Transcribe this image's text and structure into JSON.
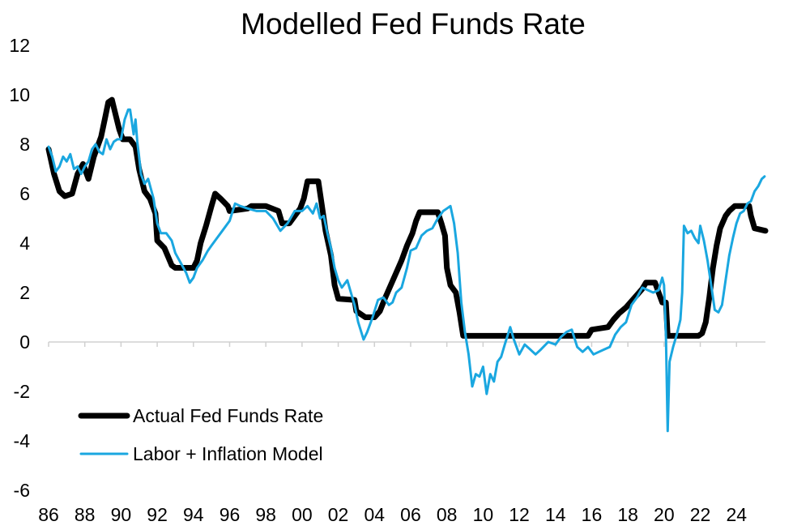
{
  "chart_data": {
    "type": "line",
    "title": "Modelled Fed Funds Rate",
    "xlabel": "",
    "ylabel": "",
    "xlim": [
      1986,
      2025.6
    ],
    "ylim": [
      -6,
      12
    ],
    "grid": false,
    "legend_position": "bottom-left",
    "y_ticks": [
      {
        "value": 12,
        "label": "12"
      },
      {
        "value": 10,
        "label": "10"
      },
      {
        "value": 8,
        "label": "8"
      },
      {
        "value": 6,
        "label": "6"
      },
      {
        "value": 4,
        "label": "4"
      },
      {
        "value": 2,
        "label": "2"
      },
      {
        "value": 0,
        "label": "0"
      },
      {
        "value": -2,
        "label": "-2"
      },
      {
        "value": -4,
        "label": "-4"
      },
      {
        "value": -6,
        "label": "-6"
      }
    ],
    "x_ticks": [
      {
        "value": 1986,
        "label": "86"
      },
      {
        "value": 1988,
        "label": "88"
      },
      {
        "value": 1990,
        "label": "90"
      },
      {
        "value": 1992,
        "label": "92"
      },
      {
        "value": 1994,
        "label": "94"
      },
      {
        "value": 1996,
        "label": "96"
      },
      {
        "value": 1998,
        "label": "98"
      },
      {
        "value": 2000,
        "label": "00"
      },
      {
        "value": 2002,
        "label": "02"
      },
      {
        "value": 2004,
        "label": "04"
      },
      {
        "value": 2006,
        "label": "06"
      },
      {
        "value": 2008,
        "label": "08"
      },
      {
        "value": 2010,
        "label": "10"
      },
      {
        "value": 2012,
        "label": "12"
      },
      {
        "value": 2014,
        "label": "14"
      },
      {
        "value": 2016,
        "label": "16"
      },
      {
        "value": 2018,
        "label": "18"
      },
      {
        "value": 2020,
        "label": "20"
      },
      {
        "value": 2022,
        "label": "22"
      },
      {
        "value": 2024,
        "label": "24"
      }
    ],
    "series": [
      {
        "name": "Actual Fed Funds Rate",
        "color": "#000000",
        "points": [
          [
            1986.0,
            7.8
          ],
          [
            1986.3,
            6.8
          ],
          [
            1986.6,
            6.1
          ],
          [
            1986.9,
            5.9
          ],
          [
            1987.3,
            6.0
          ],
          [
            1987.6,
            6.8
          ],
          [
            1987.9,
            7.2
          ],
          [
            1988.2,
            6.6
          ],
          [
            1988.5,
            7.5
          ],
          [
            1988.9,
            8.3
          ],
          [
            1989.1,
            9.0
          ],
          [
            1989.3,
            9.7
          ],
          [
            1989.5,
            9.8
          ],
          [
            1989.7,
            9.2
          ],
          [
            1989.9,
            8.6
          ],
          [
            1990.1,
            8.2
          ],
          [
            1990.5,
            8.2
          ],
          [
            1990.8,
            7.9
          ],
          [
            1991.0,
            7.0
          ],
          [
            1991.3,
            6.1
          ],
          [
            1991.6,
            5.8
          ],
          [
            1991.9,
            5.2
          ],
          [
            1992.0,
            4.1
          ],
          [
            1992.4,
            3.8
          ],
          [
            1992.8,
            3.1
          ],
          [
            1993.0,
            3.0
          ],
          [
            1993.5,
            3.0
          ],
          [
            1994.0,
            3.0
          ],
          [
            1994.2,
            3.3
          ],
          [
            1994.4,
            4.0
          ],
          [
            1994.7,
            4.7
          ],
          [
            1995.0,
            5.5
          ],
          [
            1995.2,
            6.0
          ],
          [
            1995.5,
            5.8
          ],
          [
            1995.9,
            5.5
          ],
          [
            1996.0,
            5.3
          ],
          [
            1997.0,
            5.4
          ],
          [
            1997.2,
            5.5
          ],
          [
            1998.0,
            5.5
          ],
          [
            1998.7,
            5.3
          ],
          [
            1998.9,
            4.8
          ],
          [
            1999.3,
            4.8
          ],
          [
            1999.6,
            5.1
          ],
          [
            1999.9,
            5.4
          ],
          [
            2000.1,
            5.8
          ],
          [
            2000.3,
            6.5
          ],
          [
            2000.9,
            6.5
          ],
          [
            2001.1,
            5.5
          ],
          [
            2001.3,
            4.5
          ],
          [
            2001.6,
            3.5
          ],
          [
            2001.8,
            2.3
          ],
          [
            2002.0,
            1.75
          ],
          [
            2002.9,
            1.7
          ],
          [
            2003.0,
            1.25
          ],
          [
            2003.5,
            1.0
          ],
          [
            2004.0,
            1.0
          ],
          [
            2004.3,
            1.25
          ],
          [
            2004.6,
            1.8
          ],
          [
            2004.9,
            2.3
          ],
          [
            2005.2,
            2.8
          ],
          [
            2005.5,
            3.3
          ],
          [
            2005.8,
            3.9
          ],
          [
            2006.1,
            4.4
          ],
          [
            2006.3,
            4.9
          ],
          [
            2006.5,
            5.25
          ],
          [
            2007.5,
            5.25
          ],
          [
            2007.7,
            4.8
          ],
          [
            2007.9,
            4.3
          ],
          [
            2008.0,
            3.0
          ],
          [
            2008.2,
            2.3
          ],
          [
            2008.5,
            2.0
          ],
          [
            2008.7,
            1.2
          ],
          [
            2008.9,
            0.25
          ],
          [
            2009.5,
            0.25
          ],
          [
            2015.8,
            0.25
          ],
          [
            2016.0,
            0.5
          ],
          [
            2016.9,
            0.6
          ],
          [
            2017.2,
            0.9
          ],
          [
            2017.5,
            1.15
          ],
          [
            2017.9,
            1.4
          ],
          [
            2018.2,
            1.65
          ],
          [
            2018.5,
            1.9
          ],
          [
            2018.8,
            2.15
          ],
          [
            2019.0,
            2.4
          ],
          [
            2019.5,
            2.4
          ],
          [
            2019.7,
            2.0
          ],
          [
            2019.9,
            1.6
          ],
          [
            2020.1,
            1.6
          ],
          [
            2020.2,
            0.25
          ],
          [
            2021.9,
            0.25
          ],
          [
            2022.1,
            0.35
          ],
          [
            2022.3,
            0.8
          ],
          [
            2022.5,
            1.8
          ],
          [
            2022.7,
            3.0
          ],
          [
            2022.9,
            3.9
          ],
          [
            2023.1,
            4.6
          ],
          [
            2023.4,
            5.1
          ],
          [
            2023.6,
            5.3
          ],
          [
            2023.9,
            5.5
          ],
          [
            2024.7,
            5.5
          ],
          [
            2024.8,
            5.1
          ],
          [
            2025.0,
            4.6
          ],
          [
            2025.6,
            4.5
          ]
        ]
      },
      {
        "name": "Labor + Inflation Model",
        "color": "#1aa7e0",
        "points": [
          [
            1986.0,
            7.9
          ],
          [
            1986.2,
            7.5
          ],
          [
            1986.4,
            6.9
          ],
          [
            1986.6,
            7.1
          ],
          [
            1986.8,
            7.5
          ],
          [
            1987.0,
            7.3
          ],
          [
            1987.2,
            7.6
          ],
          [
            1987.4,
            7.0
          ],
          [
            1987.6,
            7.1
          ],
          [
            1987.8,
            6.8
          ],
          [
            1988.0,
            7.1
          ],
          [
            1988.2,
            7.3
          ],
          [
            1988.4,
            7.8
          ],
          [
            1988.6,
            8.0
          ],
          [
            1988.8,
            7.7
          ],
          [
            1989.0,
            7.6
          ],
          [
            1989.2,
            8.2
          ],
          [
            1989.4,
            7.8
          ],
          [
            1989.6,
            8.1
          ],
          [
            1989.8,
            8.2
          ],
          [
            1990.0,
            8.2
          ],
          [
            1990.2,
            9.0
          ],
          [
            1990.4,
            9.4
          ],
          [
            1990.5,
            9.4
          ],
          [
            1990.7,
            8.4
          ],
          [
            1990.8,
            9.0
          ],
          [
            1990.9,
            8.1
          ],
          [
            1991.0,
            7.5
          ],
          [
            1991.1,
            6.8
          ],
          [
            1991.3,
            6.4
          ],
          [
            1991.5,
            6.6
          ],
          [
            1991.8,
            5.8
          ],
          [
            1992.0,
            4.8
          ],
          [
            1992.2,
            4.4
          ],
          [
            1992.5,
            4.4
          ],
          [
            1992.8,
            4.1
          ],
          [
            1993.0,
            3.6
          ],
          [
            1993.3,
            3.2
          ],
          [
            1993.6,
            2.8
          ],
          [
            1993.8,
            2.4
          ],
          [
            1994.0,
            2.6
          ],
          [
            1994.2,
            3.0
          ],
          [
            1994.5,
            3.3
          ],
          [
            1994.8,
            3.7
          ],
          [
            1995.0,
            3.9
          ],
          [
            1995.3,
            4.2
          ],
          [
            1995.6,
            4.5
          ],
          [
            1996.0,
            4.9
          ],
          [
            1996.3,
            5.6
          ],
          [
            1996.6,
            5.5
          ],
          [
            1997.0,
            5.4
          ],
          [
            1997.5,
            5.3
          ],
          [
            1998.0,
            5.3
          ],
          [
            1998.4,
            5.0
          ],
          [
            1998.8,
            4.5
          ],
          [
            1999.2,
            4.8
          ],
          [
            1999.6,
            5.3
          ],
          [
            2000.0,
            5.3
          ],
          [
            2000.3,
            5.5
          ],
          [
            2000.6,
            5.2
          ],
          [
            2000.8,
            5.6
          ],
          [
            2001.0,
            5.0
          ],
          [
            2001.2,
            5.1
          ],
          [
            2001.4,
            4.4
          ],
          [
            2001.6,
            3.8
          ],
          [
            2001.8,
            3.0
          ],
          [
            2002.0,
            2.5
          ],
          [
            2002.2,
            2.2
          ],
          [
            2002.5,
            2.5
          ],
          [
            2002.7,
            2.0
          ],
          [
            2002.9,
            1.5
          ],
          [
            2003.1,
            0.8
          ],
          [
            2003.4,
            0.1
          ],
          [
            2003.6,
            0.4
          ],
          [
            2003.9,
            1.0
          ],
          [
            2004.2,
            1.7
          ],
          [
            2004.5,
            1.8
          ],
          [
            2004.8,
            1.5
          ],
          [
            2005.0,
            1.6
          ],
          [
            2005.2,
            2.0
          ],
          [
            2005.5,
            2.2
          ],
          [
            2005.8,
            3.0
          ],
          [
            2006.0,
            3.7
          ],
          [
            2006.3,
            3.8
          ],
          [
            2006.6,
            4.3
          ],
          [
            2006.9,
            4.5
          ],
          [
            2007.2,
            4.6
          ],
          [
            2007.5,
            5.0
          ],
          [
            2007.8,
            5.3
          ],
          [
            2008.0,
            5.4
          ],
          [
            2008.2,
            5.5
          ],
          [
            2008.4,
            4.8
          ],
          [
            2008.6,
            3.6
          ],
          [
            2008.8,
            1.6
          ],
          [
            2009.0,
            0.4
          ],
          [
            2009.2,
            -0.5
          ],
          [
            2009.4,
            -1.8
          ],
          [
            2009.6,
            -1.3
          ],
          [
            2009.8,
            -1.4
          ],
          [
            2010.0,
            -1.0
          ],
          [
            2010.2,
            -2.1
          ],
          [
            2010.4,
            -1.3
          ],
          [
            2010.6,
            -1.6
          ],
          [
            2010.8,
            -0.8
          ],
          [
            2011.0,
            -0.6
          ],
          [
            2011.2,
            -0.1
          ],
          [
            2011.5,
            0.6
          ],
          [
            2011.7,
            0.1
          ],
          [
            2012.0,
            -0.5
          ],
          [
            2012.3,
            -0.1
          ],
          [
            2012.6,
            -0.3
          ],
          [
            2012.9,
            -0.5
          ],
          [
            2013.2,
            -0.3
          ],
          [
            2013.6,
            0.0
          ],
          [
            2014.0,
            -0.1
          ],
          [
            2014.3,
            0.2
          ],
          [
            2014.6,
            0.4
          ],
          [
            2014.9,
            0.5
          ],
          [
            2015.2,
            -0.2
          ],
          [
            2015.5,
            -0.4
          ],
          [
            2015.8,
            -0.2
          ],
          [
            2016.1,
            -0.5
          ],
          [
            2016.4,
            -0.4
          ],
          [
            2016.7,
            -0.3
          ],
          [
            2017.0,
            -0.2
          ],
          [
            2017.3,
            0.3
          ],
          [
            2017.6,
            0.6
          ],
          [
            2017.9,
            0.8
          ],
          [
            2018.2,
            1.5
          ],
          [
            2018.5,
            1.8
          ],
          [
            2018.8,
            2.2
          ],
          [
            2019.1,
            2.1
          ],
          [
            2019.4,
            2.0
          ],
          [
            2019.7,
            2.1
          ],
          [
            2019.9,
            2.6
          ],
          [
            2020.0,
            2.3
          ],
          [
            2020.1,
            0.3
          ],
          [
            2020.2,
            -3.6
          ],
          [
            2020.3,
            -0.8
          ],
          [
            2020.5,
            -0.2
          ],
          [
            2020.7,
            0.3
          ],
          [
            2020.9,
            0.9
          ],
          [
            2021.0,
            2.0
          ],
          [
            2021.1,
            4.7
          ],
          [
            2021.3,
            4.4
          ],
          [
            2021.5,
            4.5
          ],
          [
            2021.7,
            4.2
          ],
          [
            2021.9,
            4.0
          ],
          [
            2022.0,
            4.7
          ],
          [
            2022.2,
            4.1
          ],
          [
            2022.4,
            3.3
          ],
          [
            2022.6,
            2.3
          ],
          [
            2022.8,
            1.3
          ],
          [
            2023.0,
            1.2
          ],
          [
            2023.2,
            1.5
          ],
          [
            2023.4,
            2.5
          ],
          [
            2023.6,
            3.5
          ],
          [
            2023.8,
            4.2
          ],
          [
            2024.0,
            4.8
          ],
          [
            2024.2,
            5.2
          ],
          [
            2024.4,
            5.3
          ],
          [
            2024.6,
            5.6
          ],
          [
            2024.8,
            5.7
          ],
          [
            2025.0,
            6.1
          ],
          [
            2025.2,
            6.3
          ],
          [
            2025.4,
            6.6
          ],
          [
            2025.55,
            6.7
          ]
        ]
      }
    ]
  }
}
